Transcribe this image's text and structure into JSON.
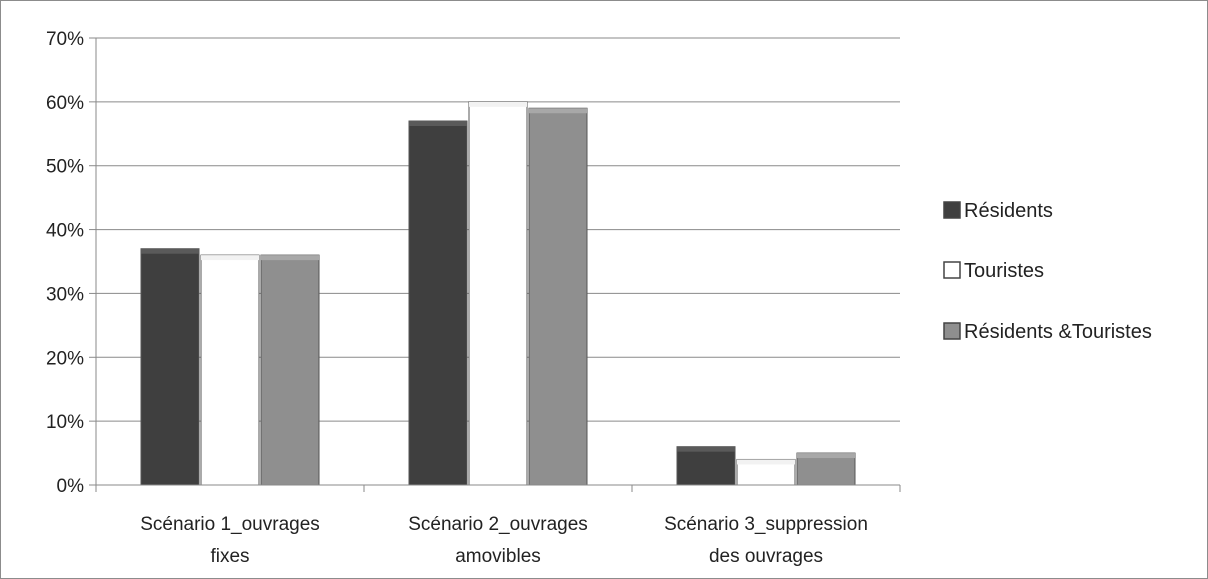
{
  "chart_data": {
    "type": "bar",
    "title": "",
    "xlabel": "",
    "ylabel": "",
    "ylim": [
      0,
      0.7
    ],
    "yticks": [
      "0%",
      "10%",
      "20%",
      "30%",
      "40%",
      "50%",
      "60%",
      "70%"
    ],
    "grid": true,
    "legend_position": "right",
    "categories": [
      [
        "Scénario 1_ouvrages",
        "fixes"
      ],
      [
        "Scénario 2_ouvrages",
        "amovibles"
      ],
      [
        "Scénario 3_suppression",
        "des ouvrages"
      ]
    ],
    "series": [
      {
        "name": "Résidents",
        "values": [
          0.37,
          0.57,
          0.06
        ],
        "color": "#3f3f3f"
      },
      {
        "name": "Touristes",
        "values": [
          0.36,
          0.6,
          0.04
        ],
        "color": "#ffffff"
      },
      {
        "name": "Résidents &Touristes",
        "values": [
          0.36,
          0.59,
          0.05
        ],
        "color": "#8f8f8f"
      }
    ]
  }
}
